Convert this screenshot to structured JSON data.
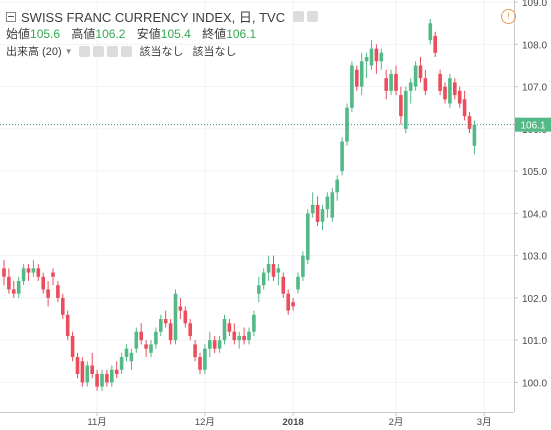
{
  "header": {
    "title": "SWISS FRANC CURRENCY INDEX, 日, TVC",
    "ohlc": [
      {
        "label": "始値",
        "value": "105.6"
      },
      {
        "label": "高値",
        "value": "106.2"
      },
      {
        "label": "安値",
        "value": "105.4"
      },
      {
        "label": "終値",
        "value": "106.1"
      }
    ],
    "indicator": {
      "name": "出来高 (20)",
      "value1": "該当なし",
      "value2": "該当なし"
    },
    "alert_icon": "!"
  },
  "colors": {
    "up": "#53b987",
    "down": "#eb4d5c",
    "crosshair": "#3b9a86",
    "grid": "#f0f3fa"
  },
  "chart_data": {
    "type": "candlestick",
    "ylim": [
      99.3,
      109.05
    ],
    "yticks": [
      "100.0",
      "101.0",
      "102.0",
      "103.0",
      "104.0",
      "105.0",
      "106.0",
      "107.0",
      "108.0",
      "109.0"
    ],
    "xticks": [
      "11月",
      "12月",
      "2018",
      "2月",
      "3月"
    ],
    "price_label": "106.1",
    "candles": [
      [
        102.7,
        102.9,
        102.3,
        102.5
      ],
      [
        102.5,
        102.7,
        102.1,
        102.2
      ],
      [
        102.2,
        102.4,
        102.0,
        102.1
      ],
      [
        102.1,
        102.5,
        102.0,
        102.4
      ],
      [
        102.4,
        102.8,
        102.3,
        102.7
      ],
      [
        102.7,
        102.8,
        102.4,
        102.6
      ],
      [
        102.6,
        102.9,
        102.5,
        102.7
      ],
      [
        102.7,
        102.8,
        102.4,
        102.5
      ],
      [
        102.5,
        102.6,
        102.1,
        102.2
      ],
      [
        102.2,
        102.4,
        101.8,
        102.0
      ],
      [
        102.6,
        102.7,
        102.3,
        102.5
      ],
      [
        102.3,
        102.4,
        101.9,
        102.0
      ],
      [
        102.0,
        102.1,
        101.5,
        101.6
      ],
      [
        101.6,
        101.7,
        101.0,
        101.1
      ],
      [
        101.1,
        101.2,
        100.5,
        100.6
      ],
      [
        100.6,
        100.7,
        100.1,
        100.2
      ],
      [
        100.5,
        100.6,
        99.9,
        100.0
      ],
      [
        100.0,
        100.5,
        99.9,
        100.4
      ],
      [
        100.4,
        100.7,
        100.1,
        100.2
      ],
      [
        100.2,
        100.3,
        99.8,
        99.9
      ],
      [
        99.9,
        100.3,
        99.8,
        100.2
      ],
      [
        100.2,
        100.3,
        99.9,
        100.0
      ],
      [
        100.0,
        100.4,
        99.9,
        100.3
      ],
      [
        100.3,
        100.5,
        100.1,
        100.2
      ],
      [
        100.3,
        100.7,
        100.2,
        100.6
      ],
      [
        100.6,
        100.9,
        100.5,
        100.8
      ],
      [
        100.5,
        100.8,
        100.3,
        100.7
      ],
      [
        100.8,
        101.3,
        100.7,
        101.2
      ],
      [
        101.2,
        101.4,
        100.9,
        101.0
      ],
      [
        100.9,
        101.0,
        100.6,
        100.8
      ],
      [
        100.7,
        101.0,
        100.6,
        100.9
      ],
      [
        100.9,
        101.3,
        100.8,
        101.2
      ],
      [
        101.2,
        101.6,
        101.1,
        101.5
      ],
      [
        101.5,
        101.7,
        101.3,
        101.4
      ],
      [
        101.4,
        101.5,
        100.9,
        101.0
      ],
      [
        101.0,
        102.2,
        100.9,
        102.1
      ],
      [
        101.8,
        102.0,
        101.5,
        101.7
      ],
      [
        101.7,
        101.8,
        101.3,
        101.4
      ],
      [
        101.4,
        101.5,
        101.0,
        101.1
      ],
      [
        100.9,
        101.0,
        100.5,
        100.6
      ],
      [
        100.6,
        100.7,
        100.2,
        100.3
      ],
      [
        100.3,
        100.9,
        100.2,
        100.8
      ],
      [
        100.8,
        101.2,
        100.6,
        101.0
      ],
      [
        101.0,
        101.1,
        100.7,
        100.8
      ],
      [
        100.8,
        101.1,
        100.7,
        101.0
      ],
      [
        101.0,
        101.6,
        100.9,
        101.5
      ],
      [
        101.4,
        101.5,
        101.1,
        101.2
      ],
      [
        101.2,
        101.4,
        100.9,
        101.0
      ],
      [
        101.0,
        101.2,
        100.8,
        101.1
      ],
      [
        101.1,
        101.3,
        100.9,
        101.0
      ],
      [
        101.0,
        101.3,
        100.9,
        101.2
      ],
      [
        101.2,
        101.7,
        101.1,
        101.6
      ],
      [
        102.1,
        102.5,
        101.9,
        102.3
      ],
      [
        102.3,
        102.7,
        102.2,
        102.6
      ],
      [
        102.6,
        103.0,
        102.4,
        102.8
      ],
      [
        102.8,
        103.0,
        102.4,
        102.5
      ],
      [
        102.6,
        102.8,
        102.3,
        102.7
      ],
      [
        102.5,
        102.6,
        102.0,
        102.1
      ],
      [
        102.1,
        102.2,
        101.6,
        101.7
      ],
      [
        101.9,
        102.0,
        101.7,
        101.8
      ],
      [
        102.2,
        102.6,
        102.1,
        102.5
      ],
      [
        102.5,
        103.1,
        102.4,
        103.0
      ],
      [
        102.9,
        104.1,
        102.8,
        104.0
      ],
      [
        104.0,
        104.5,
        103.9,
        104.2
      ],
      [
        104.2,
        104.4,
        103.7,
        103.8
      ],
      [
        103.8,
        104.2,
        103.6,
        104.1
      ],
      [
        104.1,
        104.5,
        103.9,
        104.4
      ],
      [
        103.9,
        104.6,
        103.8,
        104.5
      ],
      [
        104.5,
        104.9,
        104.3,
        104.8
      ],
      [
        105.0,
        105.8,
        104.9,
        105.7
      ],
      [
        105.7,
        106.6,
        105.6,
        106.5
      ],
      [
        106.5,
        107.6,
        106.4,
        107.5
      ],
      [
        107.4,
        107.5,
        106.9,
        107.0
      ],
      [
        107.0,
        107.8,
        106.8,
        107.6
      ],
      [
        107.6,
        107.8,
        107.2,
        107.7
      ],
      [
        107.5,
        108.1,
        107.4,
        107.9
      ],
      [
        107.9,
        108.0,
        107.3,
        107.6
      ],
      [
        107.6,
        107.9,
        107.4,
        107.8
      ],
      [
        107.2,
        107.4,
        106.7,
        106.9
      ],
      [
        106.9,
        107.4,
        106.8,
        107.3
      ],
      [
        107.3,
        107.5,
        106.8,
        106.9
      ],
      [
        106.8,
        107.0,
        106.1,
        106.3
      ],
      [
        106.0,
        107.0,
        105.9,
        106.9
      ],
      [
        106.9,
        107.2,
        106.6,
        107.1
      ],
      [
        107.0,
        107.6,
        106.9,
        107.5
      ],
      [
        107.5,
        107.7,
        107.1,
        107.2
      ],
      [
        107.2,
        107.4,
        106.8,
        106.9
      ],
      [
        108.1,
        108.6,
        108.0,
        108.5
      ],
      [
        108.2,
        108.3,
        107.7,
        107.8
      ],
      [
        107.3,
        107.4,
        106.8,
        106.9
      ],
      [
        107.0,
        107.1,
        106.6,
        106.7
      ],
      [
        106.6,
        107.3,
        106.5,
        107.2
      ],
      [
        107.1,
        107.2,
        106.7,
        106.8
      ],
      [
        106.9,
        107.0,
        106.5,
        106.6
      ],
      [
        106.7,
        106.9,
        106.2,
        106.3
      ],
      [
        106.3,
        106.4,
        105.9,
        106.0
      ],
      [
        105.6,
        106.2,
        105.4,
        106.1
      ]
    ]
  }
}
